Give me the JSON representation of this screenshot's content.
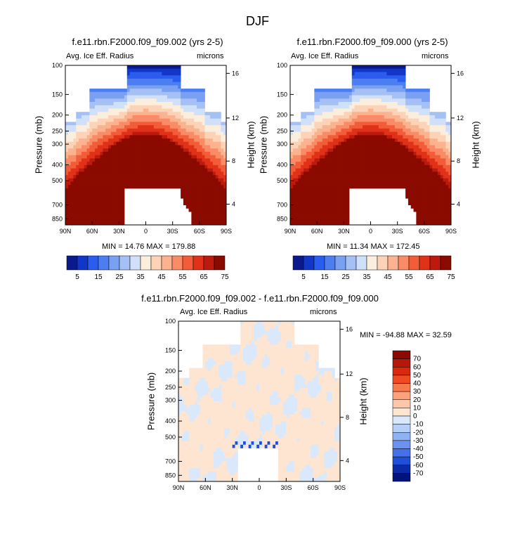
{
  "figure": {
    "title": "DJF",
    "field_label": "Avg. Ice Eff. Radius",
    "units_label": "microns"
  },
  "chart_data": [
    {
      "type": "heatmap",
      "title": "f.e11.rbn.F2000.f09_f09.002 (yrs 2-5)",
      "left_string": "Avg. Ice Eff. Radius",
      "right_string": "microns",
      "xlabel": "",
      "ylabel": "Pressure (mb)",
      "ylabel_right": "Height (km)",
      "x_ticks": [
        "90N",
        "60N",
        "30N",
        "0",
        "30S",
        "60S",
        "90S"
      ],
      "y_ticks": [
        "100",
        "150",
        "200",
        "250",
        "300",
        "400",
        "500",
        "700",
        "850"
      ],
      "y_right_ticks": [
        "16",
        "12",
        "8",
        "4"
      ],
      "stats": "MIN = 14.76   MAX = 179.88",
      "min": 14.76,
      "max": 179.88,
      "colorbar_labels": [
        "5",
        "15",
        "25",
        "35",
        "45",
        "55",
        "65",
        "75"
      ]
    },
    {
      "type": "heatmap",
      "title": "f.e11.rbn.F2000.f09_f09.000 (yrs 2-5)",
      "left_string": "Avg. Ice Eff. Radius",
      "right_string": "microns",
      "xlabel": "",
      "ylabel": "Pressure (mb)",
      "ylabel_right": "Height (km)",
      "x_ticks": [
        "90N",
        "60N",
        "30N",
        "0",
        "30S",
        "60S",
        "90S"
      ],
      "y_ticks": [
        "100",
        "150",
        "200",
        "250",
        "300",
        "400",
        "500",
        "700",
        "850"
      ],
      "y_right_ticks": [
        "16",
        "12",
        "8",
        "4"
      ],
      "stats": "MIN = 11.34   MAX = 172.45",
      "min": 11.34,
      "max": 172.45,
      "colorbar_labels": [
        "5",
        "15",
        "25",
        "35",
        "45",
        "55",
        "65",
        "75"
      ]
    },
    {
      "type": "heatmap",
      "title": "f.e11.rbn.F2000.f09_f09.002 - f.e11.rbn.F2000.f09_f09.000",
      "left_string": "Avg. Ice Eff. Radius",
      "right_string": "microns",
      "xlabel": "",
      "ylabel": "Pressure (mb)",
      "ylabel_right": "Height (km)",
      "x_ticks": [
        "90N",
        "60N",
        "30N",
        "0",
        "30S",
        "60S",
        "90S"
      ],
      "y_ticks": [
        "100",
        "150",
        "200",
        "250",
        "300",
        "400",
        "500",
        "700",
        "850"
      ],
      "y_right_ticks": [
        "16",
        "12",
        "8",
        "4"
      ],
      "stats": "MIN = -94.88   MAX =  32.59",
      "min": -94.88,
      "max": 32.59,
      "colorbar_labels": [
        "70",
        "60",
        "50",
        "40",
        "30",
        "20",
        "10",
        "0",
        "-10",
        "-20",
        "-30",
        "-40",
        "-50",
        "-60",
        "-70"
      ]
    }
  ],
  "colors": {
    "seq_scale": [
      "#0a1a8c",
      "#1236c8",
      "#2a5cf0",
      "#4c7ef2",
      "#7aa0f2",
      "#a4c0f4",
      "#cfe0f8",
      "#fbeedd",
      "#fcd3b6",
      "#fbb38f",
      "#f98b66",
      "#f25c38",
      "#e03218",
      "#bb1a0c",
      "#8b0a00"
    ],
    "diff_scale": [
      "#8b0a00",
      "#b31808",
      "#d8280e",
      "#ef4a22",
      "#f77a4c",
      "#fba27c",
      "#fcc6a8",
      "#fde5d2",
      "#d9e8fb",
      "#b6cff6",
      "#8eb2f2",
      "#6a92ee",
      "#4470ea",
      "#1f4fd8",
      "#0a2aa8",
      "#00137a"
    ]
  }
}
